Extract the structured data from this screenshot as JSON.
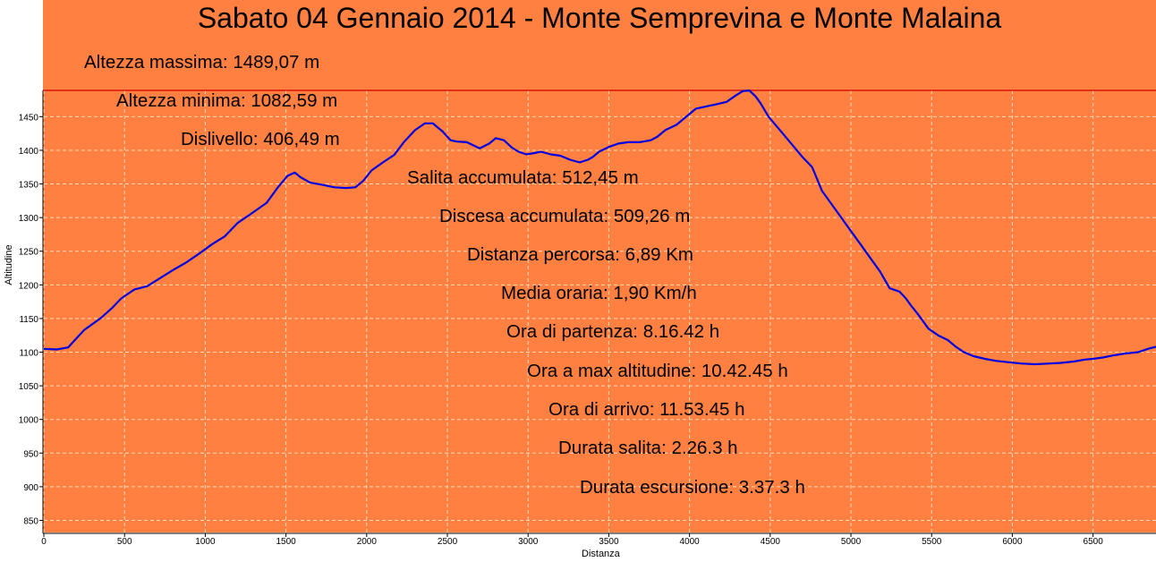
{
  "chart_data": {
    "type": "line",
    "title": "Sabato 04 Gennaio 2014 - Monte Semprevina e Monte Malaina",
    "xlabel": "Distanza",
    "ylabel": "Altitudine",
    "xlim": [
      0,
      6890
    ],
    "ylim": [
      832,
      1489.07
    ],
    "x_ticks": [
      "0",
      "500",
      "1000",
      "1500",
      "2000",
      "2500",
      "3000",
      "3500",
      "4000",
      "4500",
      "5000",
      "5500",
      "6000",
      "6500"
    ],
    "y_ticks": [
      "850",
      "900",
      "950",
      "1000",
      "1050",
      "1100",
      "1150",
      "1200",
      "1250",
      "1300",
      "1350",
      "1400",
      "1450"
    ],
    "grid": true,
    "max_line": 1489.07,
    "colors": {
      "background": "#ff8040",
      "line": "#0000e0",
      "max_line": "#d00000",
      "grid": "#ffd9b8"
    },
    "series": [
      {
        "x": [
          0,
          80,
          150,
          250,
          350,
          420,
          480,
          560,
          640,
          720,
          800,
          880,
          960,
          1040,
          1120,
          1200,
          1280,
          1380,
          1450,
          1510,
          1555,
          1590,
          1650,
          1720,
          1800,
          1870,
          1930,
          1980,
          2030,
          2100,
          2170,
          2230,
          2300,
          2360,
          2410,
          2470,
          2520,
          2560,
          2620,
          2700,
          2760,
          2800,
          2850,
          2900,
          2940,
          2990,
          3040,
          3080,
          3140,
          3200,
          3260,
          3320,
          3370,
          3400,
          3440,
          3500,
          3560,
          3620,
          3690,
          3760,
          3800,
          3850,
          3920,
          3980,
          4040,
          4100,
          4160,
          4230,
          4290,
          4330,
          4370,
          4410,
          4440,
          4490,
          4560,
          4630,
          4700,
          4760,
          4820,
          4880,
          4940,
          5000,
          5060,
          5120,
          5180,
          5240,
          5300,
          5340,
          5370,
          5420,
          5480,
          5540,
          5600,
          5650,
          5700,
          5760,
          5830,
          5900,
          5980,
          6060,
          6140,
          6220,
          6300,
          6380,
          6450,
          6500,
          6560,
          6620,
          6700,
          6780,
          6840,
          6890
        ],
        "y": [
          1105,
          1104,
          1107,
          1133,
          1150,
          1165,
          1180,
          1193,
          1198,
          1210,
          1222,
          1233,
          1246,
          1260,
          1272,
          1292,
          1305,
          1322,
          1345,
          1362,
          1367,
          1360,
          1352,
          1349,
          1345,
          1344,
          1345,
          1355,
          1370,
          1382,
          1393,
          1412,
          1430,
          1440,
          1440,
          1428,
          1415,
          1413,
          1412,
          1403,
          1410,
          1418,
          1415,
          1404,
          1398,
          1394,
          1396,
          1398,
          1394,
          1392,
          1386,
          1382,
          1386,
          1390,
          1398,
          1405,
          1410,
          1412,
          1412,
          1415,
          1420,
          1430,
          1438,
          1450,
          1462,
          1465,
          1468,
          1472,
          1482,
          1488,
          1489,
          1480,
          1470,
          1450,
          1430,
          1410,
          1390,
          1375,
          1340,
          1320,
          1300,
          1280,
          1260,
          1240,
          1220,
          1195,
          1190,
          1180,
          1170,
          1155,
          1135,
          1125,
          1118,
          1108,
          1100,
          1094,
          1090,
          1087,
          1085,
          1083,
          1082,
          1083,
          1084,
          1086,
          1089,
          1090,
          1092,
          1095,
          1098,
          1100,
          1105,
          1108
        ]
      }
    ]
  },
  "stats": [
    "Altezza massima: 1489,07 m",
    "Altezza minima: 1082,59 m",
    "Dislivello: 406,49 m",
    "Salita accumulata: 512,45 m",
    "Discesa accumulata: 509,26 m",
    "Distanza percorsa: 6,89 Km",
    "Media oraria: 1,90 Km/h",
    "Ora di partenza: 8.16.42 h",
    "Ora a max altitudine: 10.42.45 h",
    "Ora di arrivo: 11.53.45 h",
    "Durata salita: 2.26.3 h",
    "Durata escursione: 3.37.3 h"
  ]
}
